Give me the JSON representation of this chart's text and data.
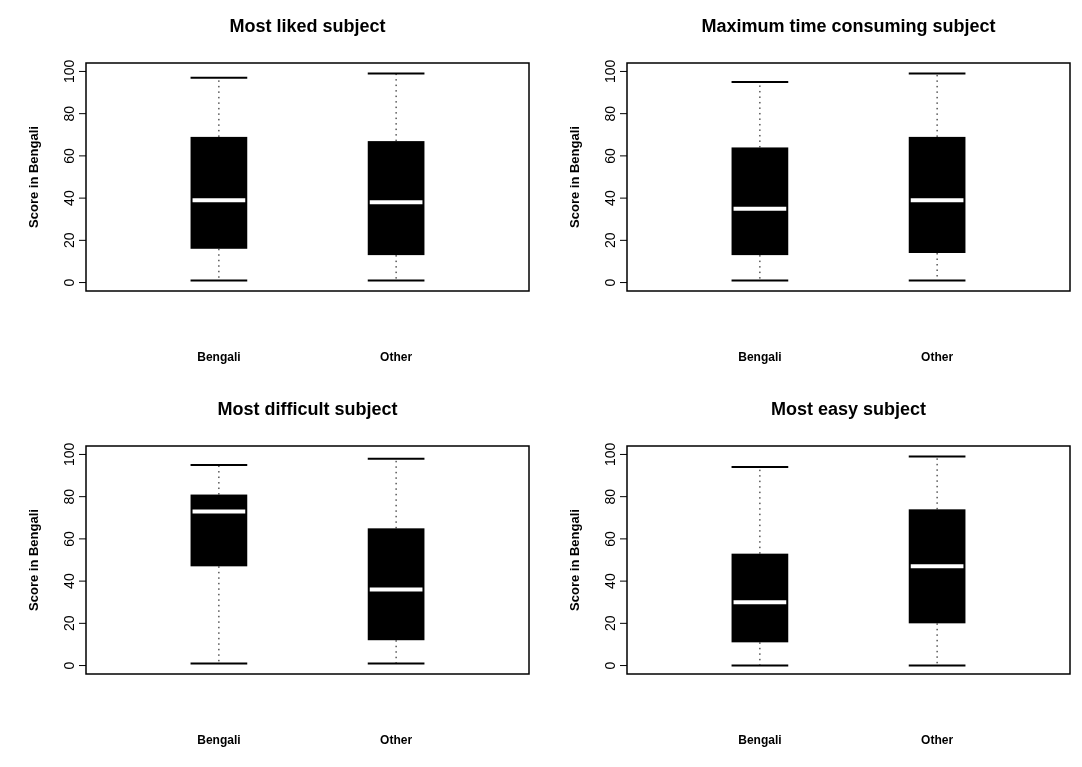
{
  "chart_data": [
    {
      "type": "box",
      "title": "Most liked subject",
      "ylabel": "Score in Bengali",
      "categories": [
        "Bengali",
        "Other"
      ],
      "color": "#000000",
      "ylim": [
        -4,
        104
      ],
      "yticks": [
        0,
        20,
        40,
        60,
        80,
        100
      ],
      "boxes": [
        {
          "low": 1,
          "q1": 16,
          "median": 39,
          "q3": 69,
          "high": 97
        },
        {
          "low": 1,
          "q1": 13,
          "median": 38,
          "q3": 67,
          "high": 99
        }
      ]
    },
    {
      "type": "box",
      "title": "Maximum time consuming subject",
      "ylabel": "Score in Bengali",
      "categories": [
        "Bengali",
        "Other"
      ],
      "color": "#000000",
      "ylim": [
        -4,
        104
      ],
      "yticks": [
        0,
        20,
        40,
        60,
        80,
        100
      ],
      "boxes": [
        {
          "low": 1,
          "q1": 13,
          "median": 35,
          "q3": 64,
          "high": 95
        },
        {
          "low": 1,
          "q1": 14,
          "median": 39,
          "q3": 69,
          "high": 99
        }
      ]
    },
    {
      "type": "box",
      "title": "Most difficult subject",
      "ylabel": "Score in Bengali",
      "categories": [
        "Bengali",
        "Other"
      ],
      "color": "#000000",
      "ylim": [
        -4,
        104
      ],
      "yticks": [
        0,
        20,
        40,
        60,
        80,
        100
      ],
      "boxes": [
        {
          "low": 1,
          "q1": 47,
          "median": 73,
          "q3": 81,
          "high": 95
        },
        {
          "low": 1,
          "q1": 12,
          "median": 36,
          "q3": 65,
          "high": 98
        }
      ]
    },
    {
      "type": "box",
      "title": "Most easy subject",
      "ylabel": "Score in Bengali",
      "categories": [
        "Bengali",
        "Other"
      ],
      "color": "#000000",
      "ylim": [
        -4,
        104
      ],
      "yticks": [
        0,
        20,
        40,
        60,
        80,
        100
      ],
      "boxes": [
        {
          "low": 0,
          "q1": 11,
          "median": 30,
          "q3": 53,
          "high": 94
        },
        {
          "low": 0,
          "q1": 20,
          "median": 47,
          "q3": 74,
          "high": 99
        }
      ]
    }
  ]
}
